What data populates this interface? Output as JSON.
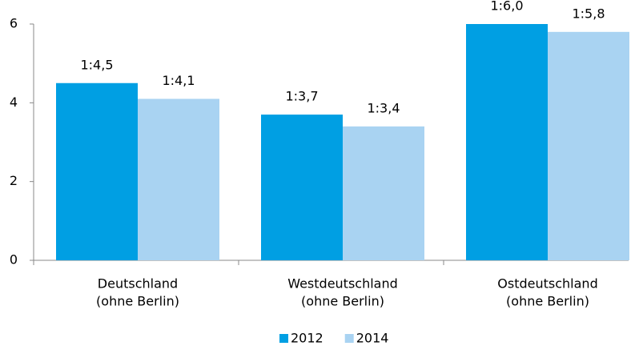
{
  "chart_data": {
    "type": "bar",
    "categories": [
      [
        "Deutschland",
        "(ohne Berlin)"
      ],
      [
        "Westdeutschland",
        "(ohne Berlin)"
      ],
      [
        "Ostdeutschland",
        "(ohne Berlin)"
      ]
    ],
    "series": [
      {
        "name": "2012",
        "color": "#009fe3",
        "values": [
          4.5,
          3.7,
          6.0
        ],
        "value_labels": [
          "1:4,5",
          "1:3,7",
          "1:6,0"
        ]
      },
      {
        "name": "2014",
        "color": "#a9d3f2",
        "values": [
          4.1,
          3.4,
          5.8
        ],
        "value_labels": [
          "1:4,1",
          "1:3,4",
          "1:5,8"
        ]
      }
    ],
    "ylim": [
      0,
      6
    ],
    "yticks": [
      0,
      2,
      4,
      6
    ],
    "legend": "bottom"
  }
}
